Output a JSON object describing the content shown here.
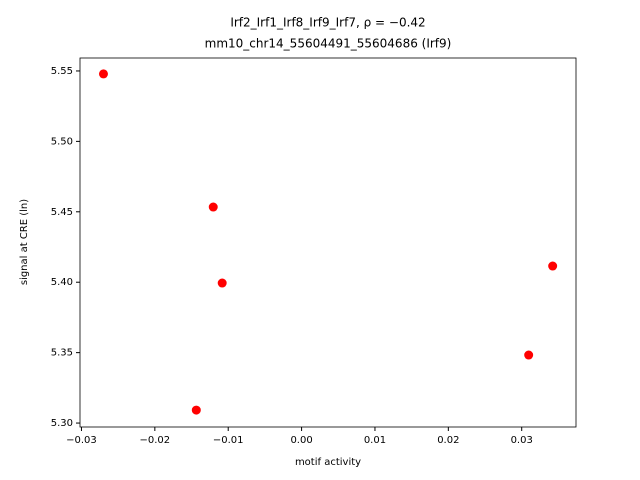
{
  "chart_data": {
    "type": "scatter",
    "title": "Irf2_Irf1_Irf8_Irf9_Irf7, ρ = −0.42",
    "subtitle": "mm10_chr14_55604491_55604686 (Irf9)",
    "xlabel": "motif activity",
    "ylabel": "signal at CRE (ln)",
    "color": "#ff0000",
    "x": [
      -0.027,
      -0.01204,
      -0.01082,
      -0.01435,
      0.03095,
      0.03422
    ],
    "values": [
      5.5479,
      5.4534,
      5.3994,
      5.3092,
      5.3483,
      5.4115
    ],
    "xlim": [
      -0.0302,
      0.0374
    ],
    "ylim": [
      5.2972,
      5.5592
    ],
    "xticks": [
      {
        "value": -0.03,
        "label": "−0.03"
      },
      {
        "value": -0.02,
        "label": "−0.02"
      },
      {
        "value": -0.01,
        "label": "−0.01"
      },
      {
        "value": 0,
        "label": "0.00"
      },
      0.01,
      0.02,
      0.03
    ],
    "yticks": [
      {
        "value": 5.3,
        "label": "5.30"
      },
      5.35,
      {
        "value": 5.4,
        "label": "5.40"
      },
      5.45,
      {
        "value": 5.5,
        "label": "5.50"
      },
      5.55
    ]
  }
}
